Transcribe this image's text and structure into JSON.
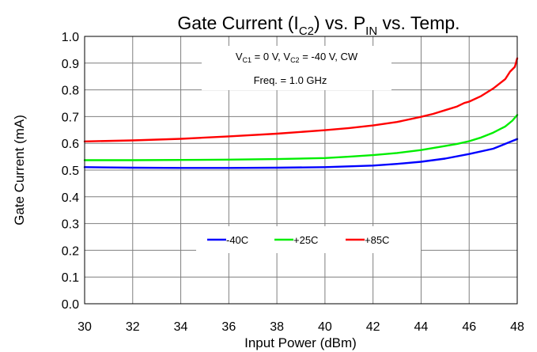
{
  "chart_data": {
    "type": "line",
    "title": {
      "prefix": "Gate Current (I",
      "sub1": "C2",
      "middle": ") vs. P",
      "sub2": "IN",
      "suffix": " vs. Temp."
    },
    "xlabel": "Input Power (dBm)",
    "ylabel": "Gate Current (mA)",
    "xlim": [
      30,
      48
    ],
    "ylim": [
      0.0,
      1.0
    ],
    "x_ticks": [
      "30",
      "32",
      "34",
      "36",
      "38",
      "40",
      "42",
      "44",
      "46",
      "48"
    ],
    "y_ticks": [
      "0.0",
      "0.1",
      "0.2",
      "0.3",
      "0.4",
      "0.5",
      "0.6",
      "0.7",
      "0.8",
      "0.9",
      "1.0"
    ],
    "grid": true,
    "annotations": {
      "conditions": {
        "v1": "V",
        "v1_sub": "C1",
        "v1_value": " = 0 V, V",
        "v2_sub": "C2",
        "v2_value": " = -40 V, CW"
      },
      "frequency": "Freq. = 1.0 GHz"
    },
    "legend_position": "lower-center",
    "series": [
      {
        "name": "-40C",
        "color": "#0000ff",
        "x": [
          30,
          32,
          34,
          36,
          38,
          40,
          42,
          43,
          44,
          45,
          46,
          47,
          47.5,
          48
        ],
        "y": [
          0.511,
          0.509,
          0.508,
          0.508,
          0.509,
          0.511,
          0.517,
          0.523,
          0.531,
          0.543,
          0.56,
          0.58,
          0.598,
          0.616
        ]
      },
      {
        "name": "+25C",
        "color": "#00ee00",
        "x": [
          30,
          32,
          34,
          36,
          38,
          40,
          41,
          42,
          43,
          44,
          45,
          45.5,
          46,
          46.5,
          47,
          47.5,
          47.8,
          48
        ],
        "y": [
          0.537,
          0.537,
          0.538,
          0.539,
          0.541,
          0.545,
          0.55,
          0.556,
          0.564,
          0.575,
          0.59,
          0.598,
          0.608,
          0.622,
          0.64,
          0.663,
          0.685,
          0.706
        ]
      },
      {
        "name": "+85C",
        "color": "#ff0000",
        "x": [
          30,
          32,
          34,
          36,
          38,
          40,
          41,
          42,
          43,
          44,
          44.5,
          45,
          45.5,
          45.8,
          46,
          46.5,
          47,
          47.5,
          47.7,
          47.9,
          48
        ],
        "y": [
          0.607,
          0.611,
          0.617,
          0.626,
          0.636,
          0.649,
          0.657,
          0.667,
          0.68,
          0.699,
          0.71,
          0.724,
          0.738,
          0.751,
          0.756,
          0.777,
          0.805,
          0.84,
          0.868,
          0.886,
          0.918
        ]
      }
    ]
  }
}
